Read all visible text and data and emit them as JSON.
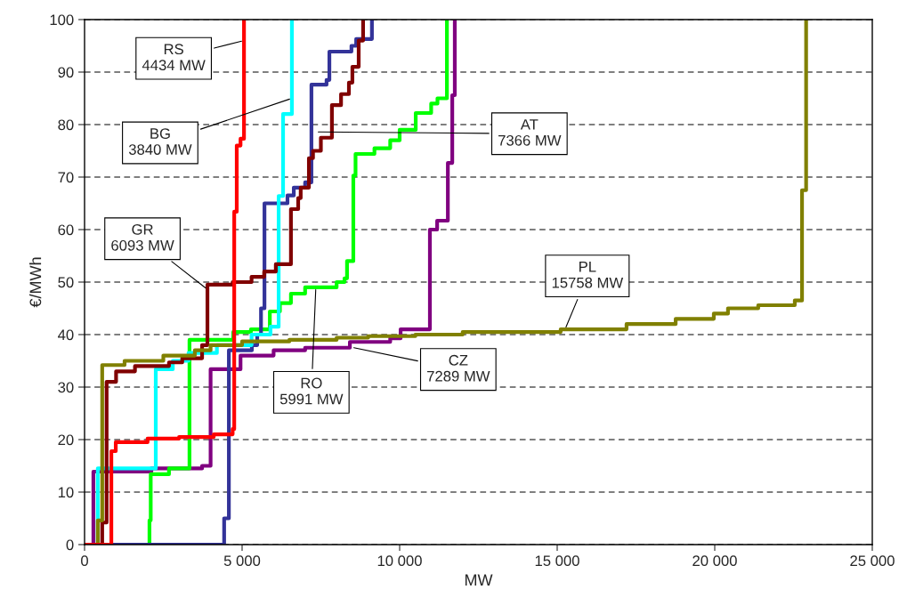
{
  "chart_data": {
    "type": "step",
    "xlabel": "MW",
    "ylabel": "€/MWh",
    "xlim": [
      0,
      25000
    ],
    "ylim": [
      0,
      100
    ],
    "xticks": [
      0,
      {
        "value": 5000,
        "label": "5 000"
      },
      {
        "value": 10000,
        "label": "10 000"
      },
      {
        "value": 15000,
        "label": "15 000"
      },
      {
        "value": 20000,
        "label": "20 000"
      },
      {
        "value": 25000,
        "label": "25 000"
      }
    ],
    "yticks": [
      0,
      10,
      20,
      30,
      40,
      50,
      60,
      70,
      80,
      90,
      100
    ],
    "grid": "y",
    "legend": false,
    "line_style": "solid",
    "marker": "none",
    "series": [
      {
        "color": "#800080",
        "x": [
          0,
          280,
          2120,
          3730,
          4000,
          4950,
          6000,
          7000,
          8420,
          9700,
          10030,
          10960,
          11190,
          11530,
          11670,
          11750
        ],
        "values": [
          0,
          13.9,
          14.5,
          15,
          33.4,
          36,
          37,
          37.5,
          38.6,
          39.3,
          41,
          60,
          61.7,
          72.7,
          85.6,
          100
        ]
      },
      {
        "color": "#00ff00",
        "x": [
          0,
          2060,
          2100,
          2680,
          3330,
          4720,
          5280,
          5880,
          6200,
          6550,
          7000,
          8000,
          8250,
          8330,
          8530,
          8600,
          9200,
          9700,
          10000,
          10510,
          11000,
          11200,
          11500
        ],
        "values": [
          0,
          4.6,
          13.4,
          14.5,
          39,
          40.5,
          41,
          44.4,
          46,
          47.8,
          49,
          50,
          50.7,
          54,
          70.3,
          74.4,
          75.5,
          77,
          79,
          82.2,
          84,
          85,
          100
        ]
      },
      {
        "color": "#333399",
        "x": [
          0,
          4430,
          4580,
          5310,
          5480,
          5600,
          5710,
          6440,
          6640,
          7000,
          7200,
          7680,
          7770,
          8470,
          8620,
          9120
        ],
        "values": [
          0,
          5,
          37,
          38,
          40,
          45,
          65,
          66.5,
          68,
          69,
          87.6,
          88.5,
          93.9,
          95,
          96.3,
          100
        ]
      },
      {
        "color": "#00ffff",
        "x": [
          0,
          420,
          2260,
          2800,
          3300,
          4200,
          5300,
          5900,
          6160,
          6300,
          6580
        ],
        "values": [
          0,
          14.5,
          33.4,
          35,
          36.5,
          38,
          40,
          41.5,
          66.4,
          82,
          100
        ]
      },
      {
        "color": "#800000",
        "x": [
          0,
          560,
          700,
          1000,
          1600,
          2680,
          3100,
          3730,
          3900,
          4700,
          5300,
          5700,
          6070,
          6550,
          6780,
          6860,
          7120,
          7250,
          7500,
          7850,
          8140,
          8390,
          8500,
          8700,
          8840
        ],
        "values": [
          0,
          4.2,
          31,
          33,
          34,
          34.7,
          35.5,
          38,
          49.5,
          50,
          51,
          52,
          53.4,
          63.9,
          66,
          68,
          73.6,
          75,
          77.5,
          83.7,
          85.8,
          88,
          91,
          96,
          100
        ]
      },
      {
        "color": "#808000",
        "x": [
          0,
          420,
          560,
          1270,
          2500,
          3500,
          4000,
          5000,
          6500,
          8000,
          9000,
          10500,
          12000,
          15110,
          17200,
          18760,
          19970,
          20420,
          21380,
          22540,
          22770,
          22900
        ],
        "values": [
          0,
          4.6,
          34.2,
          35,
          36,
          37,
          38,
          38.7,
          39,
          39.4,
          39.7,
          40,
          40.5,
          41,
          42,
          43,
          44,
          45,
          45.6,
          46.5,
          67.5,
          100
        ]
      },
      {
        "color": "#ff0000",
        "x": [
          0,
          850,
          990,
          2000,
          3000,
          4100,
          4700,
          4750,
          4830,
          4950,
          5060
        ],
        "values": [
          0,
          17.8,
          19.5,
          20.2,
          20.5,
          21,
          22,
          63.4,
          76,
          77.3,
          100
        ]
      }
    ],
    "annotations": [
      {
        "text": "RS\n4434 MW",
        "x": 5060,
        "y": 96
      },
      {
        "text": "BG\n3840 MW",
        "x": 6580,
        "y": 85
      },
      {
        "text": "GR\n6093 MW",
        "x": 3900,
        "y": 48.6
      },
      {
        "text": "AT\n7366 MW",
        "x": 7340,
        "y": 78.6
      },
      {
        "text": "RO\n5991 MW",
        "x": 7340,
        "y": 49
      },
      {
        "text": "CZ\n7289 MW",
        "x": 8470,
        "y": 37.6
      },
      {
        "text": "PL\n15758 MW",
        "x": 15250,
        "y": 41
      }
    ]
  }
}
